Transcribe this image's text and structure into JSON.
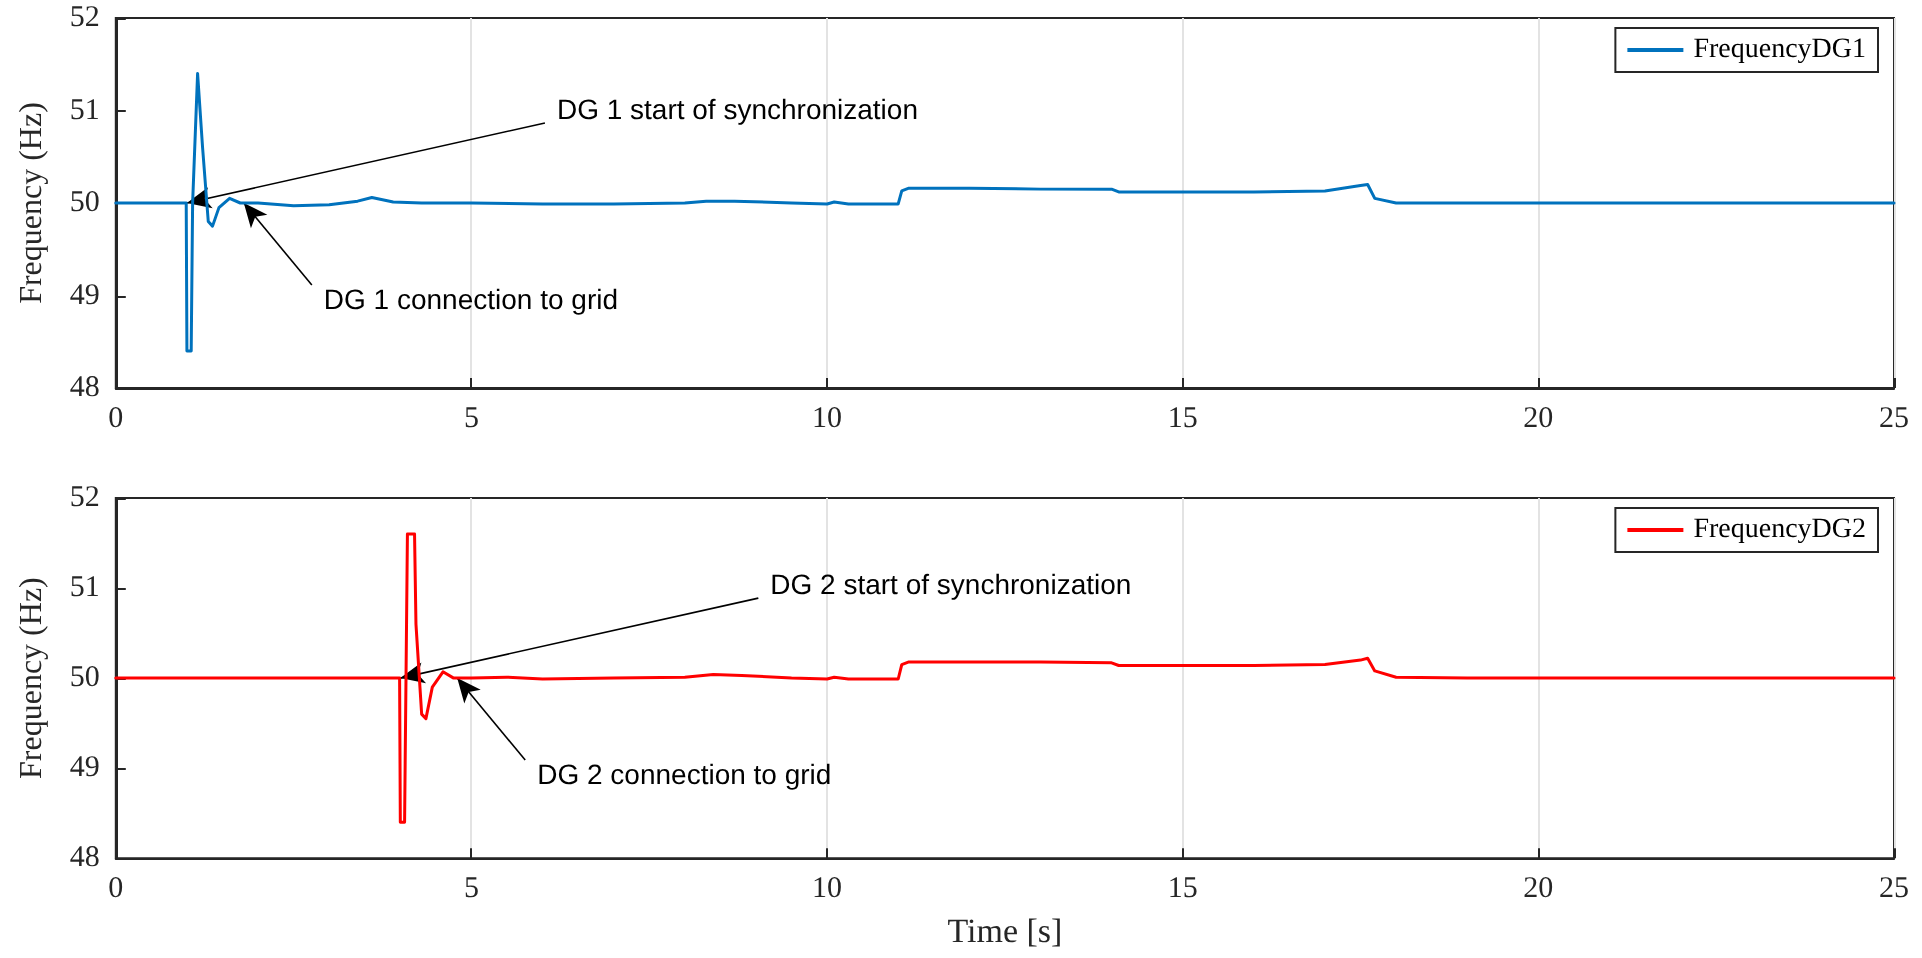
{
  "chart_data": [
    {
      "type": "line",
      "ylabel": "Frequency (Hz)",
      "xlim": [
        0,
        25
      ],
      "xticks": [
        0,
        5,
        10,
        15,
        20,
        25
      ],
      "ylim": [
        48,
        52
      ],
      "yticks": [
        48,
        49,
        50,
        51,
        52
      ],
      "grid": "x",
      "legend": "top right",
      "line_style": "solid",
      "marker": "none",
      "series": [
        {
          "name": "FrequencyDG1",
          "color": "#0072bd",
          "x": [
            0,
            0.99,
            1.0,
            1.06,
            1.08,
            1.15,
            1.22,
            1.3,
            1.36,
            1.45,
            1.6,
            1.75,
            2.0,
            2.5,
            3.0,
            3.4,
            3.6,
            3.9,
            4.3,
            5,
            6,
            7,
            8,
            8.3,
            8.7,
            9.5,
            10,
            10.1,
            10.3,
            11.0,
            11.05,
            11.15,
            12,
            13,
            14,
            14.1,
            15,
            16,
            17,
            17.5,
            17.6,
            17.7,
            18,
            19,
            20,
            25
          ],
          "values": [
            50,
            50,
            48.4,
            48.4,
            50,
            51.4,
            50.6,
            49.8,
            49.75,
            49.95,
            50.05,
            50,
            50,
            49.97,
            49.98,
            50.02,
            50.06,
            50.01,
            50,
            50,
            49.99,
            49.99,
            50,
            50.02,
            50.02,
            50,
            49.99,
            50.01,
            49.99,
            49.99,
            50.13,
            50.16,
            50.16,
            50.15,
            50.15,
            50.12,
            50.12,
            50.12,
            50.13,
            50.19,
            50.2,
            50.05,
            50,
            50,
            50,
            50
          ]
        }
      ],
      "annotations": [
        {
          "text": "DG 1 start of synchronization",
          "x": 1.0,
          "y": 50
        },
        {
          "text": "DG 1 connection to grid",
          "x": 1.8,
          "y": 50
        }
      ]
    },
    {
      "type": "line",
      "xlabel": "Time [s]",
      "ylabel": "Frequency (Hz)",
      "xlim": [
        0,
        25
      ],
      "xticks": [
        0,
        5,
        10,
        15,
        20,
        25
      ],
      "ylim": [
        48,
        52
      ],
      "yticks": [
        48,
        49,
        50,
        51,
        52
      ],
      "grid": "x",
      "legend": "top right",
      "line_style": "solid",
      "marker": "none",
      "series": [
        {
          "name": "FrequencyDG2",
          "color": "#ff0000",
          "x": [
            0,
            3.99,
            4.0,
            4.06,
            4.08,
            4.1,
            4.2,
            4.22,
            4.3,
            4.36,
            4.45,
            4.6,
            4.75,
            5.0,
            5.5,
            6,
            7,
            8,
            8.4,
            8.8,
            9.5,
            10,
            10.1,
            10.3,
            11.0,
            11.05,
            11.15,
            12,
            13,
            14,
            14.1,
            15,
            16,
            17,
            17.5,
            17.6,
            17.7,
            18,
            19,
            20,
            25
          ],
          "values": [
            50,
            50,
            48.4,
            48.4,
            50,
            51.6,
            51.6,
            50.6,
            49.6,
            49.55,
            49.9,
            50.07,
            50,
            50,
            50.01,
            49.99,
            50,
            50.01,
            50.04,
            50.03,
            50,
            49.99,
            50.01,
            49.99,
            49.99,
            50.15,
            50.18,
            50.18,
            50.18,
            50.17,
            50.14,
            50.14,
            50.14,
            50.15,
            50.2,
            50.22,
            50.08,
            50.01,
            50,
            50,
            50
          ]
        }
      ],
      "annotations": [
        {
          "text": "DG 2 start of synchronization",
          "x": 4.0,
          "y": 50
        },
        {
          "text": "DG 2 connection to grid",
          "x": 4.8,
          "y": 50
        }
      ]
    }
  ]
}
